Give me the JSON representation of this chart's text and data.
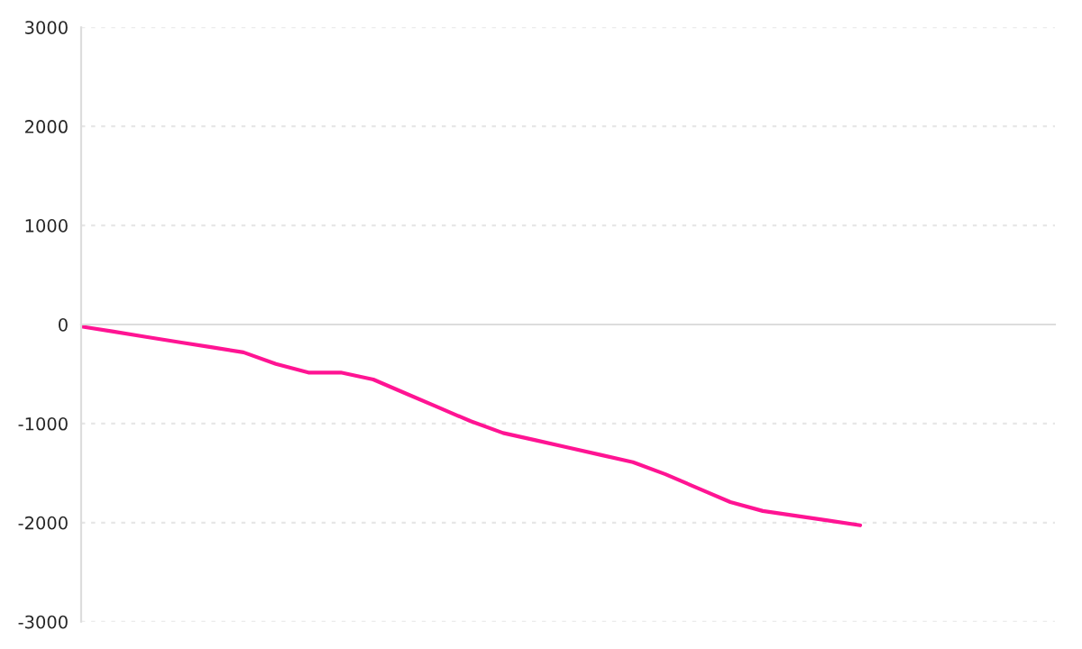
{
  "chart_data": {
    "type": "line",
    "categories": [
      null,
      null,
      null,
      null,
      null,
      null,
      null,
      null,
      null,
      null,
      null,
      null,
      null,
      null,
      null,
      null,
      null,
      null,
      null,
      null,
      null,
      null,
      null,
      null,
      null,
      null,
      null,
      null,
      null,
      null,
      null
    ],
    "series": [
      {
        "color": "#ff1493",
        "values": [
          -20,
          -72,
          -125,
          -177,
          -229,
          -281,
          -398,
          -485,
          -485,
          -555,
          -696,
          -836,
          -976,
          -1095,
          -1168,
          -1242,
          -1316,
          -1390,
          -1511,
          -1652,
          -1792,
          -1882,
          -1930,
          -1978,
          -2027,
          null,
          null,
          null,
          null,
          null,
          null
        ]
      }
    ],
    "ylim": [
      -3000,
      3000
    ],
    "yticks": [
      -3000,
      -2000,
      -1000,
      0,
      1000,
      2000,
      3000
    ],
    "grid": "y",
    "marker": "none",
    "line_style": "solid"
  }
}
